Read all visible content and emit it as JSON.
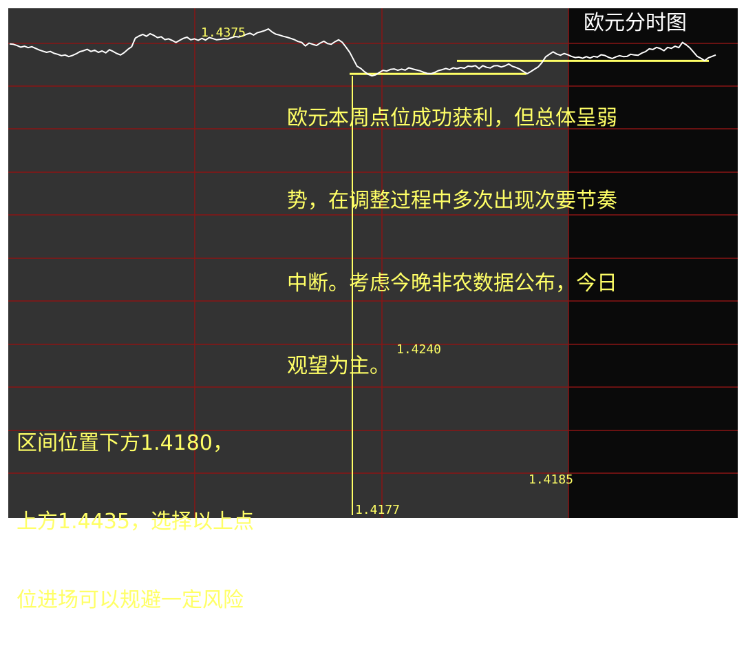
{
  "colors": {
    "background_day1": "#333333",
    "background_day2": "#0a0a0a",
    "grid": "#8a1515",
    "price_line": "#ffffff",
    "level_line": "#ffff66",
    "annotation_text": "#ffff66",
    "title_text": "#ffffff"
  },
  "title": "欧元分时图",
  "comment_lines": [
    "欧元本周点位成功获利，但总体呈弱",
    "势，在调整过程中多次出现次要节奏",
    "中断。考虑今晚非农数据公布，今日",
    "观望为主。"
  ],
  "range_note_lines": [
    "区间位置下方1.4180，",
    "上方1.4435，选择以上点",
    "位进场可以规避一定风险"
  ],
  "price_labels": {
    "high": "1.4375",
    "resistance": "1.4240",
    "support": "1.4185",
    "low": "1.4177"
  },
  "chart_data": {
    "type": "line",
    "title": "欧元分时图",
    "xlabel": "",
    "ylabel": "",
    "grid": true,
    "y_scale_reference": {
      "high": 1.4375,
      "resistance": 1.424,
      "support": 1.4185,
      "low": 1.4177
    },
    "series": [
      {
        "values": [
          1.4312,
          1.431,
          1.4305,
          1.4298,
          1.4302,
          1.4296,
          1.43,
          1.4293,
          1.4286,
          1.4281,
          1.4276,
          1.428,
          1.4272,
          1.4268,
          1.4262,
          1.4265,
          1.4258,
          1.4263,
          1.427,
          1.4279,
          1.4283,
          1.4289,
          1.428,
          1.4285,
          1.4276,
          1.4282,
          1.4274,
          1.4287,
          1.428,
          1.4271,
          1.4265,
          1.4275,
          1.4289,
          1.43,
          1.4336,
          1.4345,
          1.4352,
          1.4344,
          1.4355,
          1.4348,
          1.4338,
          1.4342,
          1.433,
          1.4333,
          1.4326,
          1.4318,
          1.4327,
          1.4335,
          1.434,
          1.4329,
          1.4333,
          1.4327,
          1.4335,
          1.4328,
          1.4339,
          1.4334,
          1.4329,
          1.4331,
          1.4334,
          1.4332,
          1.4338,
          1.4343,
          1.4341,
          1.4345,
          1.4352,
          1.4357,
          1.4349,
          1.4359,
          1.4363,
          1.4368,
          1.4375,
          1.4362,
          1.4353,
          1.4349,
          1.4344,
          1.434,
          1.4335,
          1.433,
          1.4322,
          1.4318,
          1.4303,
          1.4315,
          1.431,
          1.4305,
          1.4315,
          1.4323,
          1.4313,
          1.431,
          1.4321,
          1.4329,
          1.4318,
          1.4298,
          1.4276,
          1.4246,
          1.4217,
          1.4208,
          1.4194,
          1.4183,
          1.4177,
          1.4181,
          1.4191,
          1.42,
          1.4197,
          1.4204,
          1.4206,
          1.42,
          1.4205,
          1.4201,
          1.4211,
          1.4206,
          1.4202,
          1.4198,
          1.4192,
          1.4187,
          1.4186,
          1.4191,
          1.4199,
          1.4203,
          1.4208,
          1.4203,
          1.4211,
          1.4207,
          1.4212,
          1.4209,
          1.4218,
          1.4216,
          1.422,
          1.4207,
          1.422,
          1.4213,
          1.421,
          1.4219,
          1.422,
          1.4214,
          1.4219,
          1.4227,
          1.4217,
          1.4212,
          1.4205,
          1.4195,
          1.4186,
          1.4195,
          1.4205,
          1.4215,
          1.4233,
          1.4257,
          1.4268,
          1.4278,
          1.4269,
          1.4264,
          1.4271,
          1.4266,
          1.4259,
          1.4254,
          1.4256,
          1.4251,
          1.4258,
          1.4252,
          1.4259,
          1.4256,
          1.4266,
          1.4263,
          1.4255,
          1.425,
          1.4257,
          1.4262,
          1.4258,
          1.4259,
          1.4268,
          1.4265,
          1.4264,
          1.4273,
          1.4279,
          1.4291,
          1.4288,
          1.4297,
          1.4292,
          1.4283,
          1.4297,
          1.4293,
          1.4302,
          1.4296,
          1.4318,
          1.4308,
          1.4295,
          1.4277,
          1.4259,
          1.4251,
          1.4241,
          1.4253,
          1.4259,
          1.4265
        ]
      }
    ]
  }
}
